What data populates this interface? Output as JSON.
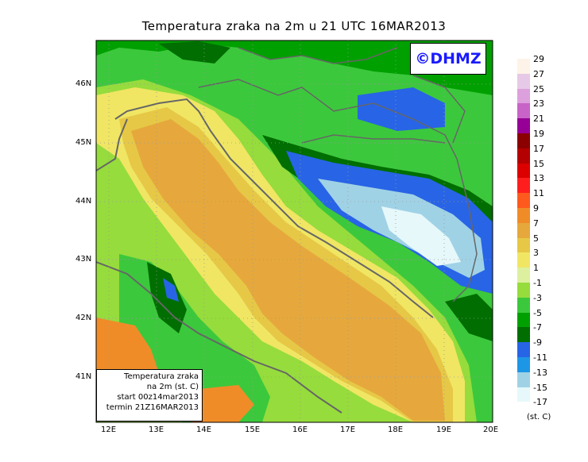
{
  "title": "Temperatura zraka na 2m  u 21 UTC  16MAR2013",
  "copyright": "©DHMZ",
  "info_box": {
    "line1": "Temperatura zraka",
    "line2": "na 2m (st. C)",
    "line3": "start 00z14mar2013",
    "line4": "termin 21Z16MAR2013"
  },
  "lat_labels": [
    "46N",
    "45N",
    "44N",
    "43N",
    "42N",
    "41N"
  ],
  "lon_labels": [
    "12E",
    "13E",
    "14E",
    "15E",
    "16E",
    "17E",
    "18E",
    "19E",
    "20E"
  ],
  "legend": {
    "unit": "(st. C)",
    "labels": [
      "29",
      "27",
      "25",
      "23",
      "21",
      "19",
      "17",
      "15",
      "13",
      "11",
      "9",
      "7",
      "5",
      "3",
      "1",
      "-1",
      "-3",
      "-5",
      "-7",
      "-9",
      "-11",
      "-13",
      "-15",
      "-17"
    ],
    "colors": [
      "#fdf3e8",
      "#e6c9e6",
      "#dca0dc",
      "#c864c8",
      "#960096",
      "#8b0000",
      "#b40000",
      "#dc0000",
      "#ff1e1e",
      "#ff5a1e",
      "#f08c28",
      "#e6a83c",
      "#e6c846",
      "#f0e664",
      "#dcf0a0",
      "#96dc3c",
      "#3cc83c",
      "#00a000",
      "#006e00",
      "#2864e6",
      "#1e96e6",
      "#a0d2e6",
      "#e6f8fa",
      "#ffffff"
    ]
  }
}
